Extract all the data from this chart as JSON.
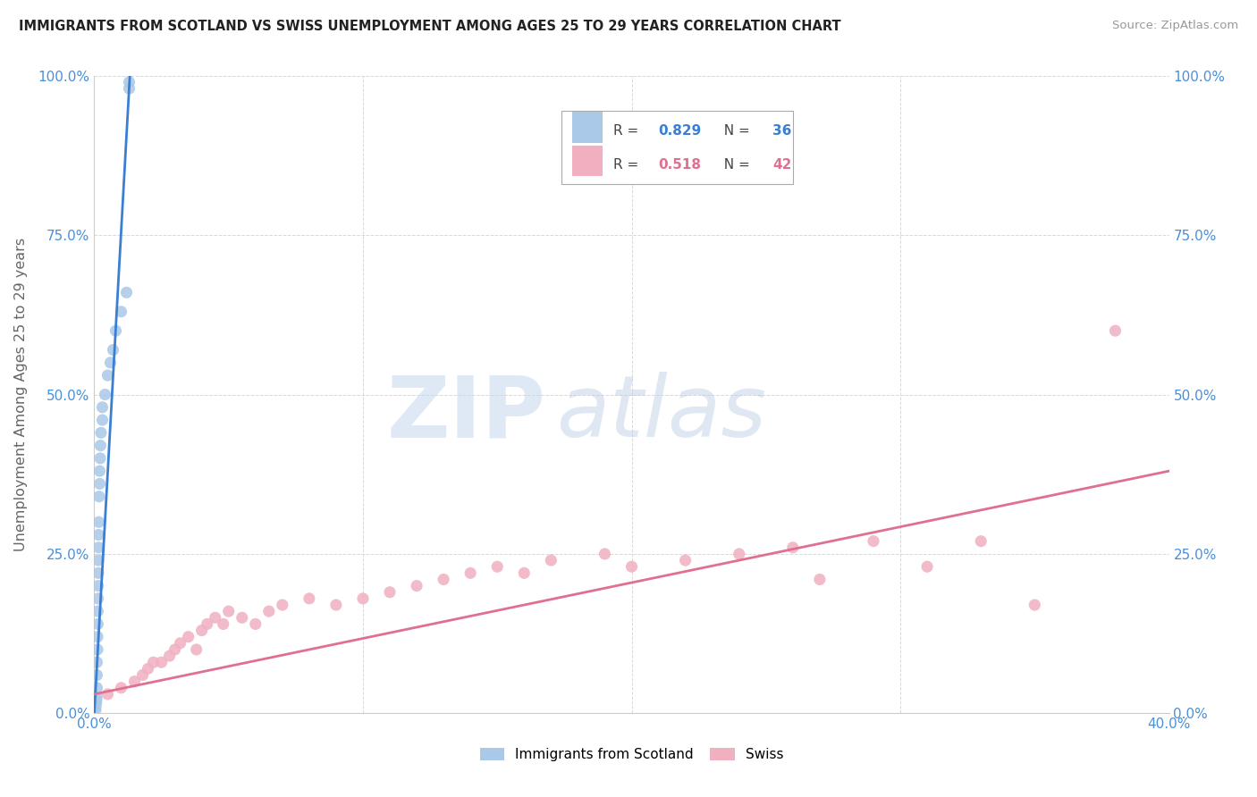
{
  "title": "IMMIGRANTS FROM SCOTLAND VS SWISS UNEMPLOYMENT AMONG AGES 25 TO 29 YEARS CORRELATION CHART",
  "source": "Source: ZipAtlas.com",
  "ylabel": "Unemployment Among Ages 25 to 29 years",
  "xlim": [
    0.0,
    0.4
  ],
  "ylim": [
    0.0,
    1.0
  ],
  "xtick_left": "0.0%",
  "xtick_right": "40.0%",
  "yticks": [
    0.0,
    0.25,
    0.5,
    0.75,
    1.0
  ],
  "ytick_labels": [
    "0.0%",
    "25.0%",
    "50.0%",
    "75.0%",
    "100.0%"
  ],
  "r_blue": "0.829",
  "n_blue": "36",
  "r_pink": "0.518",
  "n_pink": "42",
  "blue_line_color": "#3a7fd4",
  "pink_line_color": "#e07090",
  "blue_scatter_color": "#aac8e8",
  "pink_scatter_color": "#f0b0c0",
  "legend_label_blue": "Immigrants from Scotland",
  "legend_label_pink": "Swiss",
  "watermark_zip": "ZIP",
  "watermark_atlas": "atlas",
  "background_color": "#ffffff",
  "grid_color": "#d8d8d8",
  "tick_color": "#4a90d9",
  "scotland_x": [
    0.0005,
    0.0005,
    0.0007,
    0.0008,
    0.0009,
    0.001,
    0.001,
    0.001,
    0.0012,
    0.0012,
    0.0013,
    0.0013,
    0.0014,
    0.0014,
    0.0015,
    0.0015,
    0.0016,
    0.0016,
    0.0017,
    0.0018,
    0.002,
    0.002,
    0.0022,
    0.0023,
    0.0025,
    0.003,
    0.003,
    0.004,
    0.005,
    0.006,
    0.007,
    0.008,
    0.01,
    0.012,
    0.013,
    0.013
  ],
  "scotland_y": [
    0.005,
    0.01,
    0.015,
    0.02,
    0.025,
    0.04,
    0.06,
    0.08,
    0.1,
    0.12,
    0.14,
    0.16,
    0.18,
    0.2,
    0.22,
    0.24,
    0.26,
    0.28,
    0.3,
    0.34,
    0.36,
    0.38,
    0.4,
    0.42,
    0.44,
    0.46,
    0.48,
    0.5,
    0.53,
    0.55,
    0.57,
    0.6,
    0.63,
    0.66,
    0.98,
    0.99
  ],
  "swiss_x": [
    0.005,
    0.01,
    0.015,
    0.018,
    0.02,
    0.022,
    0.025,
    0.028,
    0.03,
    0.032,
    0.035,
    0.038,
    0.04,
    0.042,
    0.045,
    0.048,
    0.05,
    0.055,
    0.06,
    0.065,
    0.07,
    0.08,
    0.09,
    0.1,
    0.11,
    0.12,
    0.13,
    0.14,
    0.15,
    0.16,
    0.17,
    0.19,
    0.2,
    0.22,
    0.24,
    0.26,
    0.27,
    0.29,
    0.31,
    0.33,
    0.35,
    0.38
  ],
  "swiss_y": [
    0.03,
    0.04,
    0.05,
    0.06,
    0.07,
    0.08,
    0.08,
    0.09,
    0.1,
    0.11,
    0.12,
    0.1,
    0.13,
    0.14,
    0.15,
    0.14,
    0.16,
    0.15,
    0.14,
    0.16,
    0.17,
    0.18,
    0.17,
    0.18,
    0.19,
    0.2,
    0.21,
    0.22,
    0.23,
    0.22,
    0.24,
    0.25,
    0.23,
    0.24,
    0.25,
    0.26,
    0.21,
    0.27,
    0.23,
    0.27,
    0.17,
    0.6
  ],
  "blue_line_x": [
    0.0,
    0.0135
  ],
  "blue_line_y": [
    0.0,
    1.02
  ],
  "pink_line_x": [
    0.0,
    0.4
  ],
  "pink_line_y": [
    0.03,
    0.38
  ]
}
